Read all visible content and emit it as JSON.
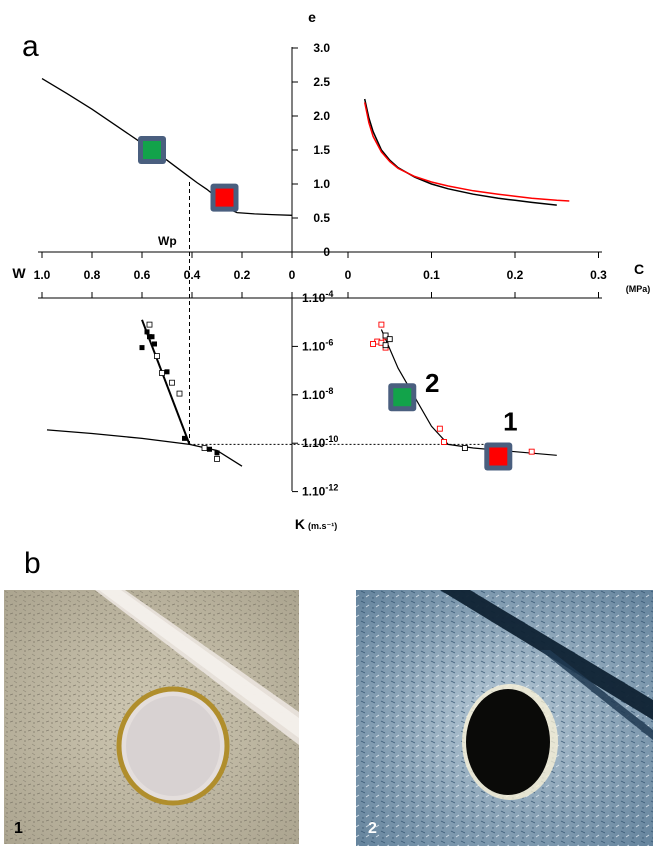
{
  "figure": {
    "panel_a_label": "a",
    "panel_b_label": "b"
  },
  "chart_data": [
    {
      "type": "line",
      "panel": "e vs W",
      "title": "",
      "xlabel": "W",
      "ylabel": "e",
      "x_reversed": true,
      "xlim": [
        0,
        1.0
      ],
      "ylim": [
        0,
        3.0
      ],
      "x_ticks": [
        "1.0",
        "0.8",
        "0.6",
        "0.4",
        "0.2",
        "0"
      ],
      "y_ticks": [
        "0",
        "0.5",
        "1.0",
        "1.5",
        "2.0",
        "2.5",
        "3.0"
      ],
      "annotation": "Wp",
      "wp_value": 0.41,
      "series": [
        {
          "x": [
            1.0,
            0.9,
            0.8,
            0.7,
            0.6,
            0.5,
            0.42,
            0.38,
            0.34,
            0.3,
            0.27,
            0.25,
            0.22,
            0.15,
            0.08,
            0.0
          ],
          "y": [
            2.55,
            2.33,
            2.1,
            1.85,
            1.6,
            1.35,
            1.13,
            1.02,
            0.92,
            0.8,
            0.7,
            0.63,
            0.58,
            0.56,
            0.55,
            0.54
          ]
        }
      ],
      "markers": [
        {
          "label": "2",
          "color": "#12a34a",
          "x": 0.56,
          "y": 1.5
        },
        {
          "label": "1",
          "color": "#ff0000",
          "x": 0.27,
          "y": 0.8
        }
      ]
    },
    {
      "type": "line",
      "panel": "e vs C",
      "xlabel": "C",
      "xunit": "(MPa)",
      "xlim": [
        0,
        0.3
      ],
      "ylim": [
        0,
        3.0
      ],
      "x_ticks": [
        "0",
        "0.1",
        "0.2",
        "0.3"
      ],
      "series": [
        {
          "color": "#000000",
          "x": [
            0.02,
            0.025,
            0.03,
            0.04,
            0.05,
            0.06,
            0.08,
            0.1,
            0.12,
            0.15,
            0.18,
            0.2,
            0.22,
            0.25
          ],
          "y": [
            2.25,
            1.97,
            1.77,
            1.5,
            1.35,
            1.24,
            1.1,
            1.0,
            0.93,
            0.85,
            0.79,
            0.76,
            0.73,
            0.69
          ]
        },
        {
          "color": "#ff0000",
          "x": [
            0.02,
            0.025,
            0.03,
            0.04,
            0.05,
            0.06,
            0.08,
            0.1,
            0.12,
            0.15,
            0.18,
            0.2,
            0.22,
            0.25,
            0.265
          ],
          "y": [
            2.2,
            1.9,
            1.7,
            1.47,
            1.33,
            1.23,
            1.11,
            1.03,
            0.97,
            0.9,
            0.85,
            0.82,
            0.79,
            0.76,
            0.75
          ]
        }
      ]
    },
    {
      "type": "scatter",
      "panel": "K vs W",
      "ylabel": "K",
      "yunit": "(m.s⁻¹)",
      "y_log": true,
      "y_ticks": [
        "1.10-4",
        "1.10-6",
        "1.10-8",
        "1.10-10",
        "1.10-12"
      ],
      "ylim_log10": [
        -12,
        -4
      ],
      "series": [
        {
          "name": "filled",
          "x": [
            0.6,
            0.58,
            0.57,
            0.56,
            0.55,
            0.5,
            0.43,
            0.33,
            0.3
          ],
          "logK": [
            -6.05,
            -5.4,
            -5.6,
            -5.6,
            -5.9,
            -7.05,
            -9.8,
            -10.25,
            -10.4
          ]
        },
        {
          "name": "open",
          "x": [
            0.57,
            0.54,
            0.52,
            0.48,
            0.45,
            0.35,
            0.3
          ],
          "logK": [
            -5.1,
            -6.4,
            -7.1,
            -7.5,
            -7.95,
            -10.2,
            -10.65
          ]
        }
      ],
      "fit_line": {
        "x": [
          0.6,
          0.41
        ],
        "logK": [
          -4.9,
          -10.05
        ]
      },
      "lower_line": {
        "x": [
          0.98,
          0.8,
          0.6,
          0.41,
          0.3,
          0.2
        ],
        "logK": [
          -9.45,
          -9.6,
          -9.8,
          -10.05,
          -10.3,
          -10.95
        ]
      }
    },
    {
      "type": "scatter",
      "panel": "K vs C",
      "series": [
        {
          "name": "red open",
          "color": "#ff0000",
          "x": [
            0.04,
            0.045,
            0.035,
            0.04,
            0.03,
            0.045,
            0.11,
            0.115,
            0.17,
            0.22
          ],
          "logK": [
            -5.1,
            -5.6,
            -5.8,
            -5.85,
            -5.9,
            -6.05,
            -9.4,
            -9.95,
            -10.2,
            -10.35
          ]
        },
        {
          "name": "black open",
          "color": "#000000",
          "x": [
            0.045,
            0.05,
            0.045,
            0.14
          ],
          "logK": [
            -5.55,
            -5.7,
            -5.95,
            -10.2
          ]
        }
      ],
      "fit_line": {
        "x": [
          0.04,
          0.06,
          0.1,
          0.12,
          0.15,
          0.2,
          0.25
        ],
        "logK": [
          -5.3,
          -6.9,
          -9.3,
          -10.05,
          -10.2,
          -10.35,
          -10.5
        ]
      },
      "markers": [
        {
          "label": "2",
          "color": "#12a34a",
          "x": 0.065,
          "logK": -8.1
        },
        {
          "label": "1",
          "color": "#ff0000",
          "x": 0.18,
          "logK": -10.55
        }
      ]
    }
  ],
  "photos": [
    {
      "num": "1",
      "marker_label_green": "2",
      "marker_label_red": "1"
    },
    {
      "num": "2",
      "marker_label_green": "2",
      "marker_label_red": "1"
    }
  ]
}
